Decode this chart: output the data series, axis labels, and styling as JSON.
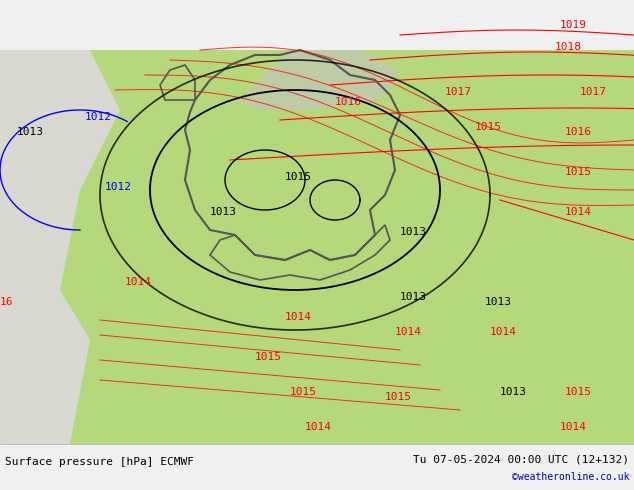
{
  "title_left": "Surface pressure [hPa] ECMWF",
  "title_right": "Tu 07-05-2024 00:00 UTC (12+132)",
  "credit": "©weatheronline.co.uk",
  "credit_color": "#0000cc",
  "bg_color_land_green": "#b5d87a",
  "bg_color_land_gray": "#c8c8c8",
  "bg_color_sea": "#e8e8e8",
  "isobar_color_red": "#ff0000",
  "isobar_color_black": "#000000",
  "isobar_color_blue": "#0000ff",
  "border_color": "#888888",
  "bottom_bar_color": "#f0f0f0",
  "bottom_bar_height": 0.09,
  "figsize": [
    6.34,
    4.9
  ],
  "dpi": 100,
  "font_size_labels": 8,
  "font_size_title": 8,
  "font_size_credit": 7
}
